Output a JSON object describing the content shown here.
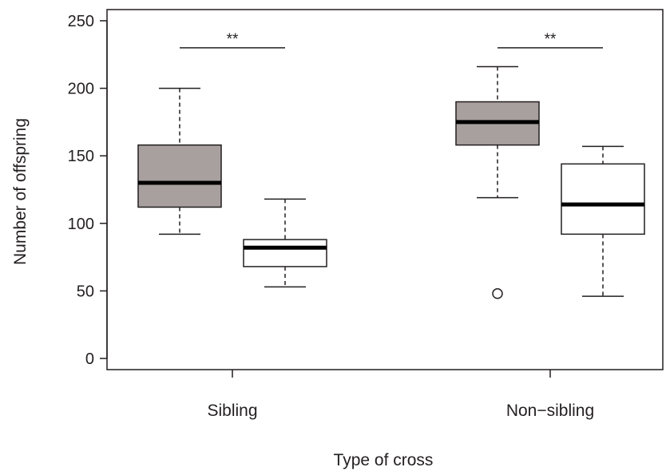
{
  "chart_data": {
    "type": "boxplot",
    "title": "",
    "xlabel": "Type of cross",
    "ylabel": "Number of offspring",
    "ylim": [
      0,
      250
    ],
    "yticks": [
      0,
      50,
      100,
      150,
      200,
      250
    ],
    "categories": [
      "Sibling",
      "Non−sibling"
    ],
    "box_fills": [
      "#a7a09e",
      "#ffffff"
    ],
    "boxes": [
      {
        "group": 0,
        "slot": 0,
        "fill": 0,
        "whisker_low": 92,
        "q1": 112,
        "median": 130,
        "q3": 158,
        "whisker_high": 200,
        "outliers": []
      },
      {
        "group": 0,
        "slot": 1,
        "fill": 1,
        "whisker_low": 53,
        "q1": 68,
        "median": 82,
        "q3": 88,
        "whisker_high": 118,
        "outliers": []
      },
      {
        "group": 1,
        "slot": 0,
        "fill": 0,
        "whisker_low": 119,
        "q1": 158,
        "median": 175,
        "q3": 190,
        "whisker_high": 216,
        "outliers": [
          48
        ]
      },
      {
        "group": 1,
        "slot": 1,
        "fill": 1,
        "whisker_low": 46,
        "q1": 92,
        "median": 114,
        "q3": 144,
        "whisker_high": 157,
        "outliers": []
      }
    ],
    "significance": [
      {
        "group": 0,
        "y": 230,
        "label": "**"
      },
      {
        "group": 1,
        "y": 230,
        "label": "**"
      }
    ],
    "grid": false,
    "legend": "none"
  }
}
